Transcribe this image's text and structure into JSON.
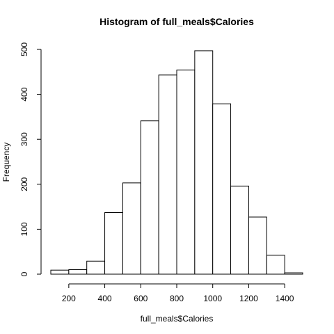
{
  "chart_data": {
    "type": "bar",
    "title": "Histogram of full_meals$Calories",
    "xlabel": "full_meals$Calories",
    "ylabel": "Frequency",
    "bins": [
      {
        "start": 100,
        "end": 200,
        "count": 9
      },
      {
        "start": 200,
        "end": 300,
        "count": 10
      },
      {
        "start": 300,
        "end": 400,
        "count": 29
      },
      {
        "start": 400,
        "end": 500,
        "count": 137
      },
      {
        "start": 500,
        "end": 600,
        "count": 203
      },
      {
        "start": 600,
        "end": 700,
        "count": 341
      },
      {
        "start": 700,
        "end": 800,
        "count": 443
      },
      {
        "start": 800,
        "end": 900,
        "count": 454
      },
      {
        "start": 900,
        "end": 1000,
        "count": 497
      },
      {
        "start": 1000,
        "end": 1100,
        "count": 379
      },
      {
        "start": 1100,
        "end": 1200,
        "count": 196
      },
      {
        "start": 1200,
        "end": 1300,
        "count": 127
      },
      {
        "start": 1300,
        "end": 1400,
        "count": 42
      },
      {
        "start": 1400,
        "end": 1500,
        "count": 3
      }
    ],
    "x_ticks": [
      200,
      400,
      600,
      800,
      1000,
      1200,
      1400
    ],
    "y_ticks": [
      0,
      100,
      200,
      300,
      400,
      500
    ],
    "xlim": [
      100,
      1500
    ],
    "ylim": [
      0,
      500
    ],
    "grid": false,
    "colors": {
      "bar_fill": "#ffffff",
      "bar_stroke": "#000000"
    }
  }
}
